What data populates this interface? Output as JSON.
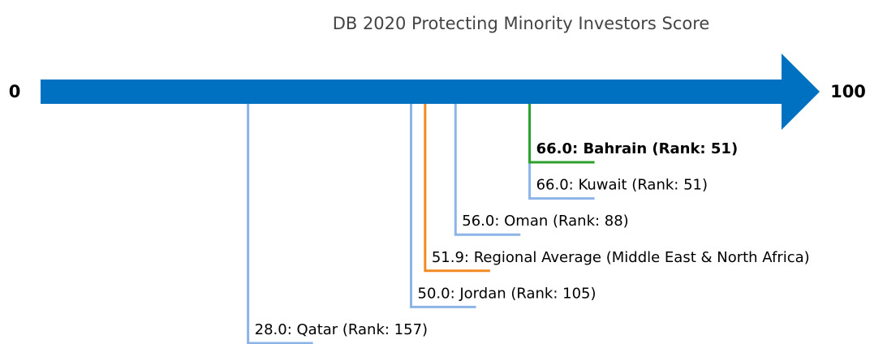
{
  "chart_data": {
    "type": "numberline",
    "title": "DB 2020 Protecting Minority Investors Score",
    "labels": [
      "28.0: Qatar (Rank: 157)",
      "50.0: Jordan (Rank: 105)",
      "51.9: Regional Average (Middle East & North Africa)",
      "56.0: Oman (Rank: 88)",
      "66.0: Kuwait (Rank: 51)",
      "66.0: Bahrain (Rank: 51)"
    ],
    "values": [
      28,
      50,
      51.9,
      56,
      66,
      66
    ],
    "colors": [
      "#8db4e8",
      "#8db4e8",
      "#f28a24",
      "#8db4e8",
      "#8db4e8",
      "#2ca02c"
    ],
    "bold": [
      false,
      false,
      false,
      false,
      false,
      true
    ],
    "axis_color": "#0070c0",
    "xlim": [
      0,
      100
    ],
    "xticks": [
      0,
      100
    ],
    "grid": false
  }
}
